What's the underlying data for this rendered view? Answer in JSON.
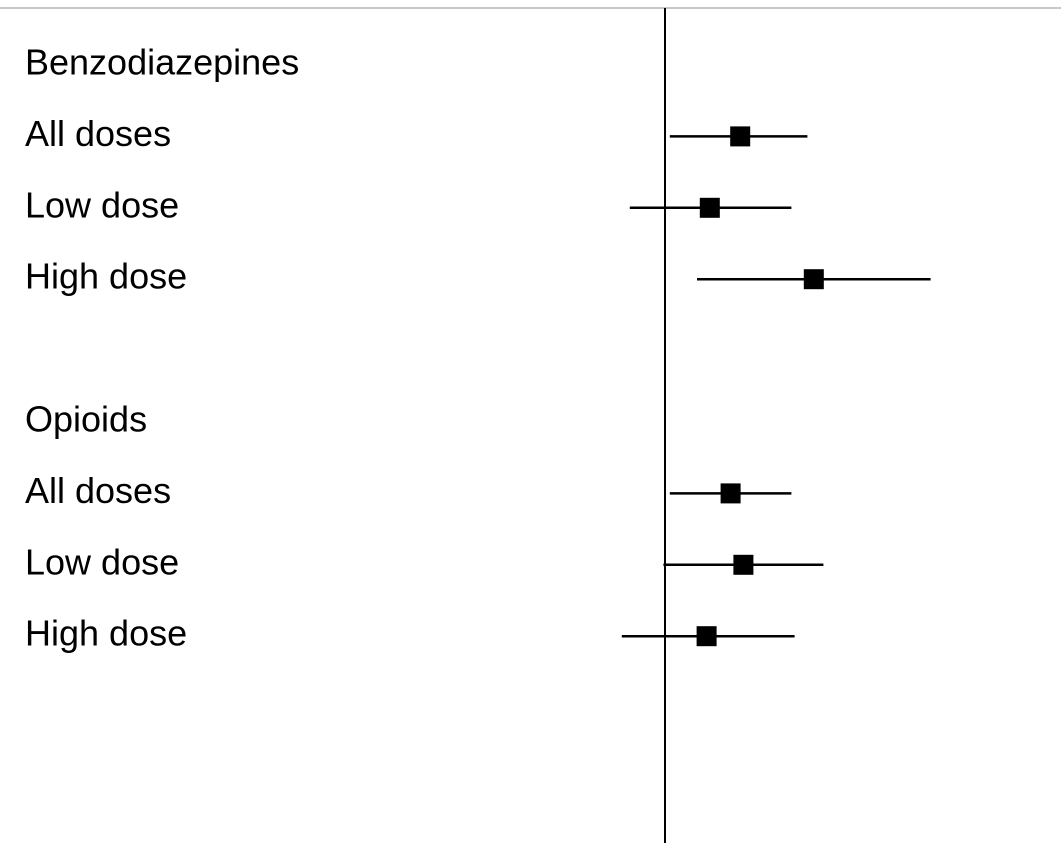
{
  "chart_data": {
    "type": "forest",
    "categories": [
      "Benzodiazepines",
      "All doses",
      "Low dose",
      "High dose",
      null,
      "Opioids",
      "All doses",
      "Low dose",
      "High dose"
    ],
    "values": [
      null,
      1.47,
      1.28,
      1.93,
      null,
      null,
      1.41,
      1.49,
      1.26
    ],
    "lower": [
      null,
      1.03,
      0.78,
      1.2,
      null,
      null,
      1.03,
      0.99,
      0.73
    ],
    "upper": [
      null,
      1.89,
      1.79,
      2.66,
      null,
      null,
      1.79,
      1.99,
      1.81
    ],
    "color": "#000000",
    "ref": 1,
    "xlim": [
      0,
      3.45
    ]
  }
}
